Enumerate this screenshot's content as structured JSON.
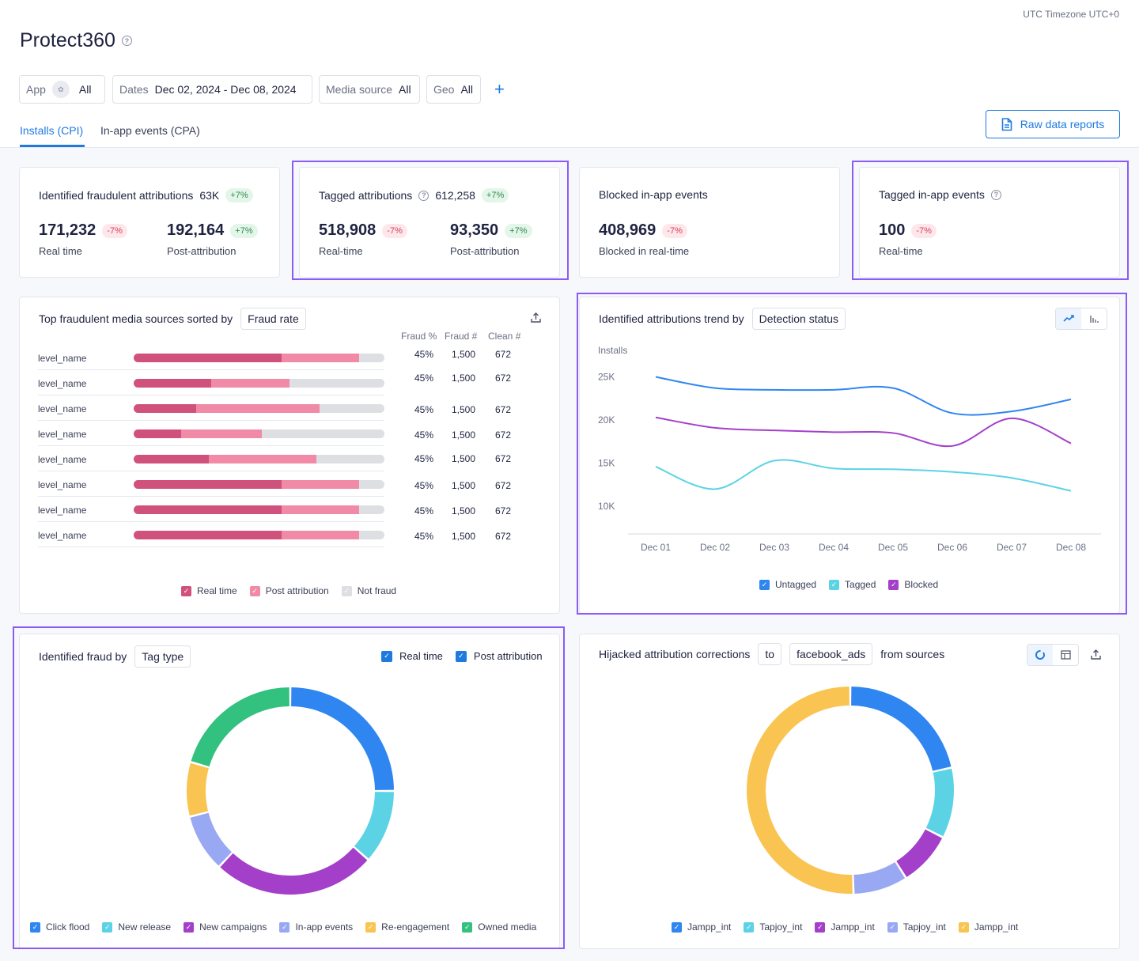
{
  "timezone": "UTC Timezone UTC+0",
  "app_title": "Protect360",
  "filters": {
    "app": {
      "label": "App",
      "value": "All"
    },
    "dates": {
      "label": "Dates",
      "value": "Dec 02, 2024 - Dec 08, 2024"
    },
    "media_source": {
      "label": "Media source",
      "value": "All"
    },
    "geo": {
      "label": "Geo",
      "value": "All"
    },
    "add": "+"
  },
  "tabs": [
    {
      "label": "Installs (CPI)",
      "active": true
    },
    {
      "label": "In-app events (CPA)",
      "active": false
    }
  ],
  "raw_data_button": "Raw data reports",
  "kpis": {
    "fraudulent": {
      "title": "Identified fraudulent attributions",
      "count": "63K",
      "badge": "+7%",
      "m1": {
        "value": "171,232",
        "badge": "-7%",
        "sub": "Real time"
      },
      "m2": {
        "value": "192,164",
        "badge": "+7%",
        "sub": "Post-attribution"
      }
    },
    "tagged": {
      "title": "Tagged attributions",
      "count": "612,258",
      "badge": "+7%",
      "m1": {
        "value": "518,908",
        "badge": "-7%",
        "sub": "Real-time"
      },
      "m2": {
        "value": "93,350",
        "badge": "+7%",
        "sub": "Post-attribution"
      }
    },
    "blocked": {
      "title": "Blocked in-app events",
      "m1": {
        "value": "408,969",
        "badge": "-7%",
        "sub": "Blocked in real-time"
      }
    },
    "tagged_inapp": {
      "title": "Tagged in-app events",
      "m1": {
        "value": "100",
        "badge": "-7%",
        "sub": "Real-time"
      }
    }
  },
  "top_sources": {
    "title": "Top fraudulent media sources sorted by",
    "sort_by": "Fraud rate",
    "headers": {
      "fraud_pct": "Fraud %",
      "fraud_num": "Fraud #",
      "clean_num": "Clean #"
    },
    "chart_data": {
      "type": "bar",
      "stacked": true,
      "categories": [
        "level_name",
        "level_name",
        "level_name",
        "level_name",
        "level_name",
        "level_name",
        "level_name",
        "level_name"
      ],
      "series": [
        {
          "name": "Real time",
          "values": [
            0.59,
            0.31,
            0.25,
            0.19,
            0.3,
            0.59,
            0.59,
            0.59
          ],
          "color": "#d0517c"
        },
        {
          "name": "Post attribution",
          "values": [
            0.31,
            0.31,
            0.49,
            0.32,
            0.43,
            0.31,
            0.31,
            0.31
          ],
          "color": "#f08aa6"
        },
        {
          "name": "Not fraud",
          "values": [
            0.1,
            0.38,
            0.26,
            0.49,
            0.27,
            0.1,
            0.1,
            0.1
          ],
          "color": "#dedfe3"
        }
      ],
      "fraud_pct": [
        "45%",
        "45%",
        "45%",
        "45%",
        "45%",
        "45%",
        "45%",
        "45%"
      ],
      "fraud_num": [
        "1,500",
        "1,500",
        "1,500",
        "1,500",
        "1,500",
        "1,500",
        "1,500",
        "1,500"
      ],
      "clean_num": [
        "672",
        "672",
        "672",
        "672",
        "672",
        "672",
        "672",
        "672"
      ]
    }
  },
  "trend": {
    "title": "Identified attributions trend by",
    "group_by": "Detection status",
    "chart_data": {
      "type": "line",
      "ylabel": "Installs",
      "y_ticks": [
        "25K",
        "20K",
        "15K",
        "10K"
      ],
      "ylim": [
        7000,
        25500
      ],
      "x": [
        "Dec 01",
        "Dec 02",
        "Dec 03",
        "Dec 04",
        "Dec 05",
        "Dec 06",
        "Dec 07",
        "Dec 08"
      ],
      "series": [
        {
          "name": "Untagged",
          "color": "#2f86f0",
          "values": [
            25000,
            23700,
            23500,
            23500,
            23700,
            20800,
            21000,
            22400
          ]
        },
        {
          "name": "Tagged",
          "color": "#5cd3e5",
          "values": [
            14600,
            12000,
            15300,
            14400,
            14300,
            14000,
            13300,
            11800
          ]
        },
        {
          "name": "Blocked",
          "color": "#a43fc9",
          "values": [
            20300,
            19100,
            18800,
            18600,
            18500,
            17000,
            20200,
            17300
          ]
        }
      ]
    }
  },
  "fraud_by_tag": {
    "title": "Identified fraud by",
    "tag": "Tag type",
    "toggles": [
      "Real time",
      "Post attribution"
    ],
    "chart_data": {
      "type": "pie",
      "donut": true,
      "series": [
        {
          "name": "Click flood",
          "color": "#2f86f0",
          "value": 25.0
        },
        {
          "name": "New release",
          "color": "#5cd3e5",
          "value": 11.5
        },
        {
          "name": "New campaigns",
          "color": "#a43fc9",
          "value": 25.5
        },
        {
          "name": "In-app events",
          "color": "#99a8f2",
          "value": 9.0
        },
        {
          "name": "Re-engagement",
          "color": "#f9c451",
          "value": 8.5
        },
        {
          "name": "Owned media",
          "color": "#32c17e",
          "value": 20.5
        }
      ]
    }
  },
  "hijacked": {
    "title": "Hijacked attribution corrections",
    "to_label": "to",
    "target": "facebook_ads",
    "from_label": "from sources",
    "chart_data": {
      "type": "pie",
      "donut": true,
      "series": [
        {
          "name": "Jampp_int",
          "color": "#2f86f0",
          "value": 21.5
        },
        {
          "name": "Tapjoy_int",
          "color": "#5cd3e5",
          "value": 11.0
        },
        {
          "name": "Jampp_int",
          "color": "#a43fc9",
          "value": 8.5
        },
        {
          "name": "Tapjoy_int",
          "color": "#99a8f2",
          "value": 8.5
        },
        {
          "name": "Jampp_int",
          "color": "#f9c451",
          "value": 50.5
        }
      ]
    }
  }
}
